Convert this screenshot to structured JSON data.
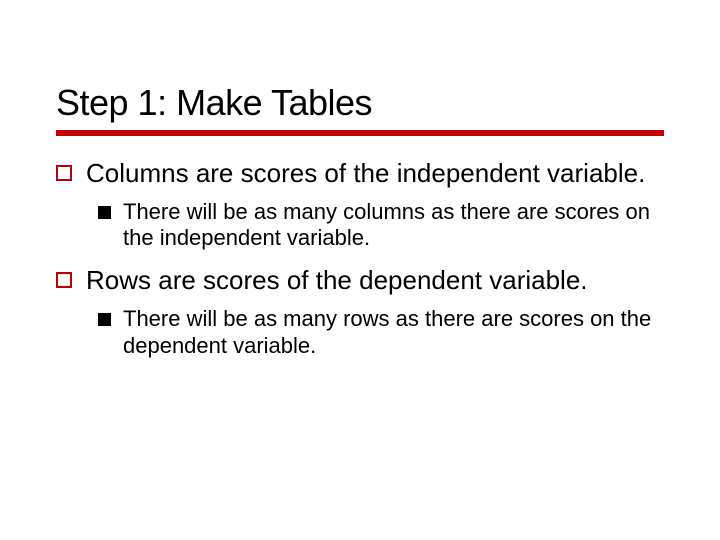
{
  "slide": {
    "title": "Step 1: Make Tables",
    "title_fontsize": 36,
    "rule_color": "#c00000",
    "rule_height": 6,
    "background_color": "#ffffff",
    "text_color": "#000000",
    "bullets": [
      {
        "level": 1,
        "text": "Columns are scores of the independent variable.",
        "marker_border_color": "#c00000",
        "fontsize": 26
      },
      {
        "level": 2,
        "text": "There will be as many columns as there are scores on the independent variable.",
        "marker_fill_color": "#000000",
        "fontsize": 22
      },
      {
        "level": 1,
        "text": "Rows are scores of the dependent variable.",
        "marker_border_color": "#c00000",
        "fontsize": 26
      },
      {
        "level": 2,
        "text": "There will be as many rows as there are scores on the dependent variable.",
        "marker_fill_color": "#000000",
        "fontsize": 22
      }
    ]
  }
}
